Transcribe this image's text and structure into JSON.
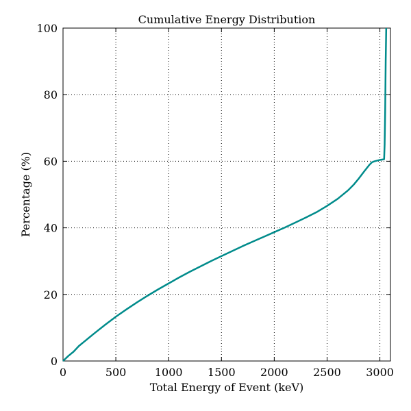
{
  "chart_data": {
    "type": "line",
    "title": "Cumulative Energy Distribution",
    "xlabel": "Total Energy of Event (keV)",
    "ylabel": "Percentage (%)",
    "xlim": [
      0,
      3100
    ],
    "ylim": [
      0,
      100
    ],
    "xticks": [
      0,
      500,
      1000,
      1500,
      2000,
      2500,
      3000
    ],
    "yticks": [
      0,
      20,
      40,
      60,
      80,
      100
    ],
    "x_tick_labels": [
      "0",
      "500",
      "1000",
      "1500",
      "2000",
      "2500",
      "3000"
    ],
    "y_tick_labels": [
      "0",
      "20",
      "40",
      "60",
      "80",
      "100"
    ],
    "grid": true,
    "grid_style": "dotted",
    "series": [
      {
        "color": "#008B8B",
        "x": [
          0,
          50,
          100,
          150,
          200,
          300,
          400,
          500,
          600,
          700,
          800,
          900,
          1000,
          1100,
          1200,
          1300,
          1400,
          1500,
          1600,
          1700,
          1800,
          1900,
          2000,
          2100,
          2200,
          2300,
          2400,
          2500,
          2600,
          2700,
          2750,
          2800,
          2850,
          2900,
          2925,
          2950,
          2975,
          3000,
          3020,
          3040,
          3045,
          3050,
          3055,
          3060
        ],
        "y": [
          0,
          1.5,
          2.8,
          4.5,
          5.8,
          8.4,
          10.9,
          13.3,
          15.5,
          17.6,
          19.6,
          21.5,
          23.3,
          25.1,
          26.8,
          28.4,
          30.0,
          31.5,
          33.0,
          34.5,
          35.9,
          37.3,
          38.7,
          40.1,
          41.6,
          43.1,
          44.7,
          46.6,
          48.7,
          51.3,
          52.9,
          54.8,
          56.9,
          58.9,
          59.7,
          60.0,
          60.2,
          60.4,
          60.5,
          60.6,
          65.0,
          75.0,
          90.0,
          100.0
        ]
      }
    ]
  }
}
